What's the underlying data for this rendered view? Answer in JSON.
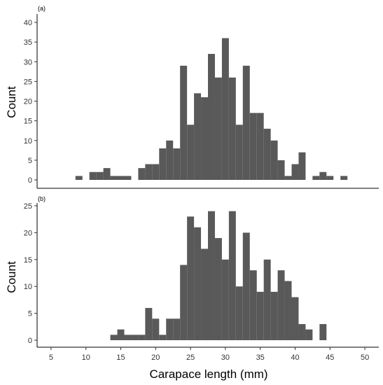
{
  "figure": {
    "bar_color": "#595959",
    "axis_color": "#000000"
  },
  "chart_data": [
    {
      "type": "bar",
      "panel_label": "(a)",
      "xlabel": "",
      "ylabel": "Count",
      "xlim": [
        3,
        52
      ],
      "ylim": [
        0,
        42
      ],
      "yticks": [
        0,
        5,
        10,
        15,
        20,
        25,
        30,
        35,
        40
      ],
      "yticklabels": [
        "0",
        "5",
        "10",
        "15",
        "20",
        "25",
        "30",
        "35",
        "40"
      ],
      "bin_width": 1,
      "bins": [
        {
          "x": 9,
          "count": 1
        },
        {
          "x": 11,
          "count": 2
        },
        {
          "x": 12,
          "count": 2
        },
        {
          "x": 13,
          "count": 3
        },
        {
          "x": 14,
          "count": 1
        },
        {
          "x": 15,
          "count": 1
        },
        {
          "x": 16,
          "count": 1
        },
        {
          "x": 18,
          "count": 3
        },
        {
          "x": 19,
          "count": 4
        },
        {
          "x": 20,
          "count": 4
        },
        {
          "x": 21,
          "count": 8
        },
        {
          "x": 22,
          "count": 10
        },
        {
          "x": 23,
          "count": 8
        },
        {
          "x": 24,
          "count": 29
        },
        {
          "x": 25,
          "count": 14
        },
        {
          "x": 26,
          "count": 22
        },
        {
          "x": 27,
          "count": 21
        },
        {
          "x": 28,
          "count": 32
        },
        {
          "x": 29,
          "count": 26
        },
        {
          "x": 30,
          "count": 36
        },
        {
          "x": 31,
          "count": 26
        },
        {
          "x": 32,
          "count": 14
        },
        {
          "x": 33,
          "count": 29
        },
        {
          "x": 34,
          "count": 17
        },
        {
          "x": 35,
          "count": 17
        },
        {
          "x": 36,
          "count": 13
        },
        {
          "x": 37,
          "count": 10
        },
        {
          "x": 38,
          "count": 5
        },
        {
          "x": 39,
          "count": 1
        },
        {
          "x": 40,
          "count": 4
        },
        {
          "x": 41,
          "count": 7
        },
        {
          "x": 43,
          "count": 1
        },
        {
          "x": 44,
          "count": 2
        },
        {
          "x": 45,
          "count": 1
        },
        {
          "x": 47,
          "count": 1
        }
      ]
    },
    {
      "type": "bar",
      "panel_label": "(b)",
      "xlabel": "Carapace length (mm)",
      "ylabel": "Count",
      "xlim": [
        3,
        52
      ],
      "ylim": [
        0,
        26
      ],
      "xticks": [
        5,
        10,
        15,
        20,
        25,
        30,
        35,
        40,
        45,
        50
      ],
      "xticklabels": [
        "5",
        "10",
        "15",
        "20",
        "25",
        "30",
        "35",
        "40",
        "45",
        "50"
      ],
      "yticks": [
        0,
        5,
        10,
        15,
        20,
        25
      ],
      "yticklabels": [
        "0",
        "5",
        "10",
        "15",
        "20",
        "25"
      ],
      "bin_width": 1,
      "bins": [
        {
          "x": 14,
          "count": 1
        },
        {
          "x": 15,
          "count": 2
        },
        {
          "x": 16,
          "count": 1
        },
        {
          "x": 17,
          "count": 1
        },
        {
          "x": 18,
          "count": 1
        },
        {
          "x": 19,
          "count": 6
        },
        {
          "x": 20,
          "count": 4
        },
        {
          "x": 21,
          "count": 1
        },
        {
          "x": 22,
          "count": 4
        },
        {
          "x": 23,
          "count": 4
        },
        {
          "x": 24,
          "count": 14
        },
        {
          "x": 25,
          "count": 23
        },
        {
          "x": 26,
          "count": 21
        },
        {
          "x": 27,
          "count": 17
        },
        {
          "x": 28,
          "count": 24
        },
        {
          "x": 29,
          "count": 19
        },
        {
          "x": 30,
          "count": 15
        },
        {
          "x": 31,
          "count": 24
        },
        {
          "x": 32,
          "count": 10
        },
        {
          "x": 33,
          "count": 20
        },
        {
          "x": 34,
          "count": 13
        },
        {
          "x": 35,
          "count": 9
        },
        {
          "x": 36,
          "count": 15
        },
        {
          "x": 37,
          "count": 9
        },
        {
          "x": 38,
          "count": 13
        },
        {
          "x": 39,
          "count": 11
        },
        {
          "x": 40,
          "count": 8
        },
        {
          "x": 41,
          "count": 3
        },
        {
          "x": 42,
          "count": 2
        },
        {
          "x": 44,
          "count": 3
        }
      ]
    }
  ]
}
